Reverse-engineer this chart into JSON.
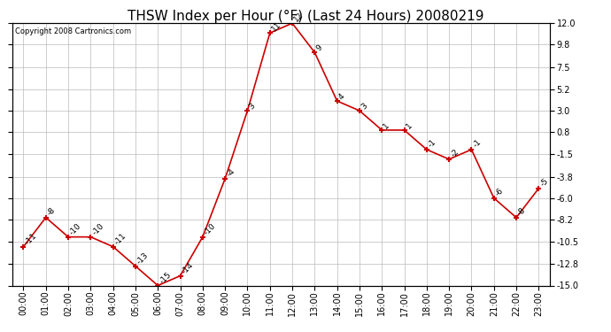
{
  "title": "THSW Index per Hour (°F) (Last 24 Hours) 20080219",
  "copyright": "Copyright 2008 Cartronics.com",
  "hours": [
    "00:00",
    "01:00",
    "02:00",
    "03:00",
    "04:00",
    "05:00",
    "06:00",
    "07:00",
    "08:00",
    "09:00",
    "10:00",
    "11:00",
    "12:00",
    "13:00",
    "14:00",
    "15:00",
    "16:00",
    "17:00",
    "18:00",
    "19:00",
    "20:00",
    "21:00",
    "22:00",
    "23:00"
  ],
  "values": [
    -11,
    -8,
    -10,
    -10,
    -11,
    -13,
    -15,
    -14,
    -10,
    -4,
    3,
    11,
    12,
    9,
    4,
    3,
    1,
    1,
    -1,
    -2,
    -1,
    -6,
    -8,
    -5
  ],
  "line_color": "#cc0000",
  "marker_color": "#cc0000",
  "bg_color": "#ffffff",
  "grid_color": "#bbbbbb",
  "ylim": [
    -15.0,
    12.0
  ],
  "yticks": [
    -15.0,
    -12.8,
    -10.5,
    -8.2,
    -6.0,
    -3.8,
    -1.5,
    0.8,
    3.0,
    5.2,
    7.5,
    9.8,
    12.0
  ],
  "title_fontsize": 11,
  "tick_fontsize": 7,
  "copyright_fontsize": 6,
  "label_fontsize": 6.5
}
